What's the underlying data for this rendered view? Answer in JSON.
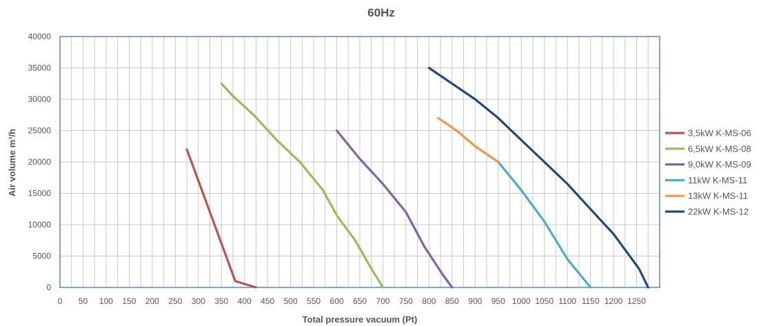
{
  "chart_data": {
    "type": "line",
    "title": "60Hz",
    "xlabel": "Total pressure vacuum (Pt)",
    "ylabel": "Air volume m³/h",
    "xlim": [
      0,
      1300
    ],
    "ylim": [
      0,
      40000
    ],
    "x_ticks": [
      0,
      50,
      100,
      150,
      200,
      250,
      300,
      350,
      400,
      450,
      500,
      550,
      600,
      650,
      700,
      750,
      800,
      850,
      900,
      950,
      1000,
      1050,
      1100,
      1150,
      1200,
      1250
    ],
    "x_grid_step": 25,
    "y_ticks": [
      0,
      5000,
      10000,
      15000,
      20000,
      25000,
      30000,
      35000,
      40000
    ],
    "grid": true,
    "legend_position": "right",
    "series": [
      {
        "name": "3,5kW K-MS-06",
        "color": "#c0504d",
        "points": [
          [
            275,
            22000
          ],
          [
            290,
            19000
          ],
          [
            310,
            15000
          ],
          [
            335,
            10000
          ],
          [
            360,
            5000
          ],
          [
            380,
            1000
          ],
          [
            425,
            0
          ]
        ]
      },
      {
        "name": "6,5kW K-MS-08",
        "color": "#9bbb59",
        "points": [
          [
            350,
            32500
          ],
          [
            375,
            30500
          ],
          [
            420,
            27500
          ],
          [
            470,
            23500
          ],
          [
            520,
            20000
          ],
          [
            570,
            15500
          ],
          [
            600,
            11500
          ],
          [
            640,
            7500
          ],
          [
            675,
            3000
          ],
          [
            700,
            0
          ]
        ]
      },
      {
        "name": "9,0kW K-MS-09",
        "color": "#8064a2",
        "points": [
          [
            600,
            25000
          ],
          [
            650,
            20500
          ],
          [
            700,
            16500
          ],
          [
            750,
            12000
          ],
          [
            790,
            6500
          ],
          [
            830,
            2000
          ],
          [
            850,
            0
          ]
        ]
      },
      {
        "name": "11kW K-MS-11",
        "color": "#4bacc6",
        "points": [
          [
            950,
            20000
          ],
          [
            1000,
            15500
          ],
          [
            1050,
            10500
          ],
          [
            1100,
            4500
          ],
          [
            1150,
            0
          ]
        ]
      },
      {
        "name": "13kW K-MS-11",
        "color": "#f79646",
        "points": [
          [
            820,
            27000
          ],
          [
            860,
            25000
          ],
          [
            900,
            22500
          ],
          [
            950,
            20000
          ]
        ]
      },
      {
        "name": "22kW K-MS-12",
        "color": "#1f497d",
        "points": [
          [
            800,
            35000
          ],
          [
            850,
            32500
          ],
          [
            900,
            30000
          ],
          [
            950,
            27000
          ],
          [
            1000,
            23500
          ],
          [
            1050,
            20000
          ],
          [
            1100,
            16500
          ],
          [
            1150,
            12500
          ],
          [
            1200,
            8500
          ],
          [
            1230,
            5500
          ],
          [
            1255,
            3000
          ],
          [
            1275,
            0
          ]
        ]
      }
    ]
  }
}
